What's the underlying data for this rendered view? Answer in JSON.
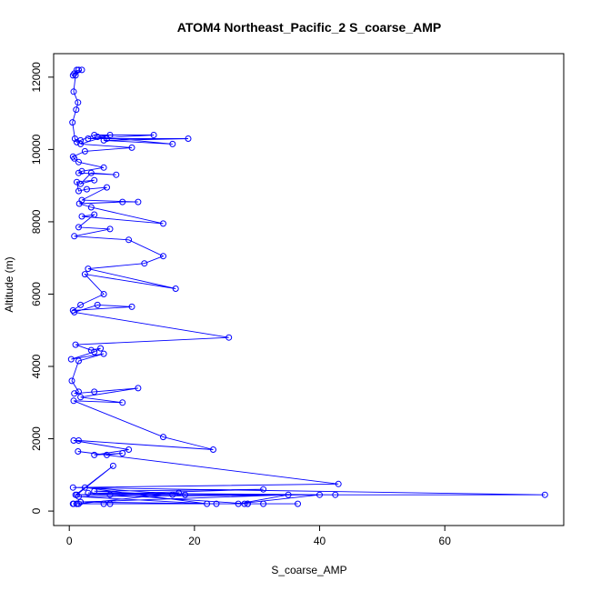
{
  "chart_data": {
    "type": "line",
    "title": "ATOM4 Northeast_Pacific_2 S_coarse_AMP",
    "xlabel": "S_coarse_AMP",
    "ylabel": "Altitude (m)",
    "xlim": [
      -2.5,
      79
    ],
    "ylim": [
      -400,
      12650
    ],
    "xticks": [
      0,
      20,
      40,
      60
    ],
    "yticks": [
      0,
      2000,
      4000,
      6000,
      8000,
      10000,
      12000
    ],
    "grid": false,
    "legend": "none",
    "color": "#0000ff",
    "marker": "open-circle",
    "series": [
      {
        "x": [
          1.2,
          0.8,
          1.5,
          0.6,
          2.0,
          1.0,
          0.7,
          1.4,
          1.1,
          0.5,
          0.9,
          1.2,
          1.8,
          4.0,
          13.5,
          3.0,
          6.0,
          19.0,
          5.5,
          16.5,
          4.5,
          6.5,
          1.8,
          10.0,
          2.5,
          0.6,
          0.8,
          1.5,
          5.5,
          2.0,
          1.5,
          7.5,
          3.5,
          1.8,
          4.0,
          1.2,
          1.5,
          2.8,
          6.0,
          2.0,
          11.0,
          8.5,
          1.6,
          3.5,
          15.0,
          2.0,
          4.0,
          1.5,
          6.5,
          0.8,
          9.5,
          15.0,
          12.0,
          3.0,
          17.0,
          2.5,
          5.5,
          1.8,
          0.6,
          10.0,
          4.5,
          0.8,
          25.5,
          1.0,
          3.5,
          5.0,
          4.0,
          0.3,
          5.5,
          1.5,
          0.4,
          1.5,
          0.8,
          4.0,
          11.0,
          1.8,
          8.5,
          0.7,
          15.0,
          23.0,
          1.5,
          0.7,
          9.5,
          4.0,
          8.5,
          6.0,
          1.4,
          43.0,
          0.6,
          76.0,
          1.2,
          7.0,
          1.0,
          31.0,
          4.0,
          16.5,
          3.0,
          42.5,
          18.5,
          2.5,
          22.0,
          1.5,
          40.0,
          27.0,
          35.0,
          1.8,
          23.5,
          28.0,
          1.2,
          36.5,
          0.6,
          31.0,
          5.5,
          28.5,
          6.5,
          17.5,
          1.5,
          28.5,
          0.7,
          6.5,
          1.2
        ],
        "y": [
          12200,
          12100,
          12200,
          12050,
          12200,
          12050,
          11600,
          11300,
          11100,
          10750,
          10300,
          10200,
          10250,
          10400,
          10400,
          10300,
          10300,
          10300,
          10250,
          10150,
          10350,
          10400,
          10150,
          10050,
          9950,
          9800,
          9750,
          9650,
          9500,
          9400,
          9350,
          9300,
          9350,
          9050,
          9150,
          9100,
          8850,
          8900,
          8950,
          8600,
          8550,
          8550,
          8500,
          8400,
          7950,
          8150,
          8200,
          7850,
          7800,
          7600,
          7500,
          7050,
          6850,
          6700,
          6150,
          6550,
          6000,
          5700,
          5550,
          5650,
          5700,
          5500,
          4800,
          4600,
          4450,
          4500,
          4400,
          4200,
          4350,
          4150,
          3600,
          3300,
          3250,
          3300,
          3400,
          3150,
          3000,
          3050,
          2050,
          1700,
          1950,
          1950,
          1700,
          1550,
          1600,
          1550,
          1650,
          750,
          650,
          450,
          450,
          1250,
          450,
          600,
          550,
          450,
          500,
          450,
          450,
          650,
          200,
          400,
          450,
          200,
          450,
          250,
          200,
          200,
          200,
          200,
          200,
          200,
          200,
          200,
          450,
          500,
          200,
          200,
          200,
          200,
          200
        ]
      }
    ]
  }
}
